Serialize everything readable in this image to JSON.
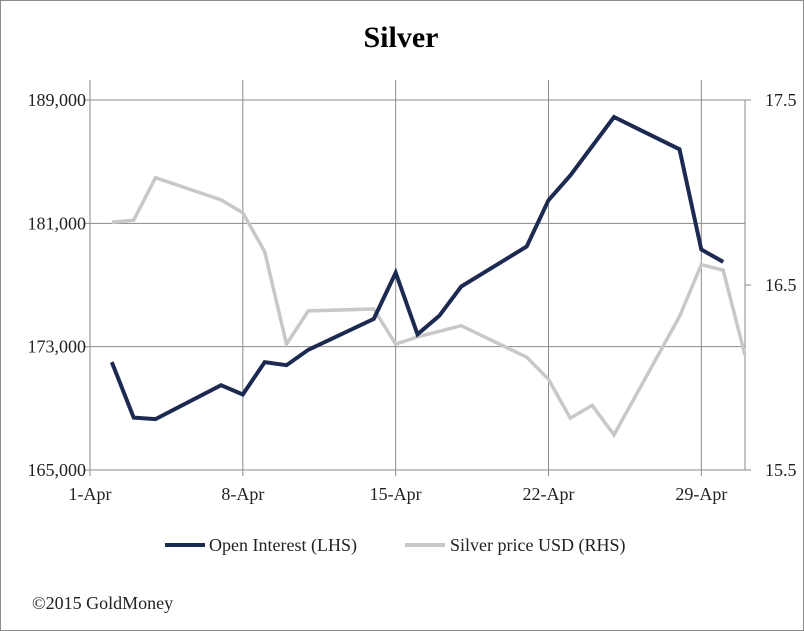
{
  "chart_data": {
    "type": "line",
    "title": "Silver",
    "x_tick_labels": [
      "1-Apr",
      "8-Apr",
      "15-Apr",
      "22-Apr",
      "29-Apr"
    ],
    "x_tick_days": [
      1,
      8,
      15,
      22,
      29
    ],
    "xlim": [
      1,
      31
    ],
    "y_left": {
      "ylim": [
        165000,
        189000
      ],
      "ticks": [
        165000,
        173000,
        181000,
        189000
      ],
      "tick_labels": [
        "165,000",
        "173,000",
        "181,000",
        "189,000"
      ]
    },
    "y_right": {
      "ylim": [
        15.5,
        17.5
      ],
      "ticks": [
        15.5,
        16.5,
        17.5
      ],
      "tick_labels": [
        "15.5",
        "16.5",
        "17.5"
      ]
    },
    "grid": true,
    "legend_position": "bottom",
    "series": [
      {
        "name": "Open Interest (LHS)",
        "axis": "left",
        "color": "#1c2a52",
        "x": [
          2,
          3,
          4,
          7,
          8,
          9,
          10,
          11,
          14,
          15,
          16,
          17,
          18,
          21,
          22,
          23,
          25,
          28,
          29,
          30
        ],
        "y": [
          172000,
          168400,
          168300,
          170500,
          169900,
          172000,
          171800,
          172800,
          174800,
          177800,
          173800,
          175000,
          176900,
          179500,
          182500,
          184100,
          187900,
          185800,
          179300,
          178500
        ]
      },
      {
        "name": "Silver price USD (RHS)",
        "axis": "right",
        "color": "#c8c8c8",
        "x": [
          2,
          3,
          4,
          7,
          8,
          9,
          10,
          11,
          14,
          15,
          16,
          17,
          18,
          21,
          22,
          23,
          24,
          25,
          28,
          29,
          30,
          31
        ],
        "y": [
          16.84,
          16.85,
          17.08,
          16.96,
          16.89,
          16.68,
          16.18,
          16.36,
          16.37,
          16.18,
          16.22,
          16.25,
          16.28,
          16.11,
          15.99,
          15.78,
          15.85,
          15.69,
          16.33,
          16.61,
          16.58,
          16.12
        ]
      }
    ]
  },
  "footer": {
    "copyright": "©2015 GoldMoney"
  }
}
